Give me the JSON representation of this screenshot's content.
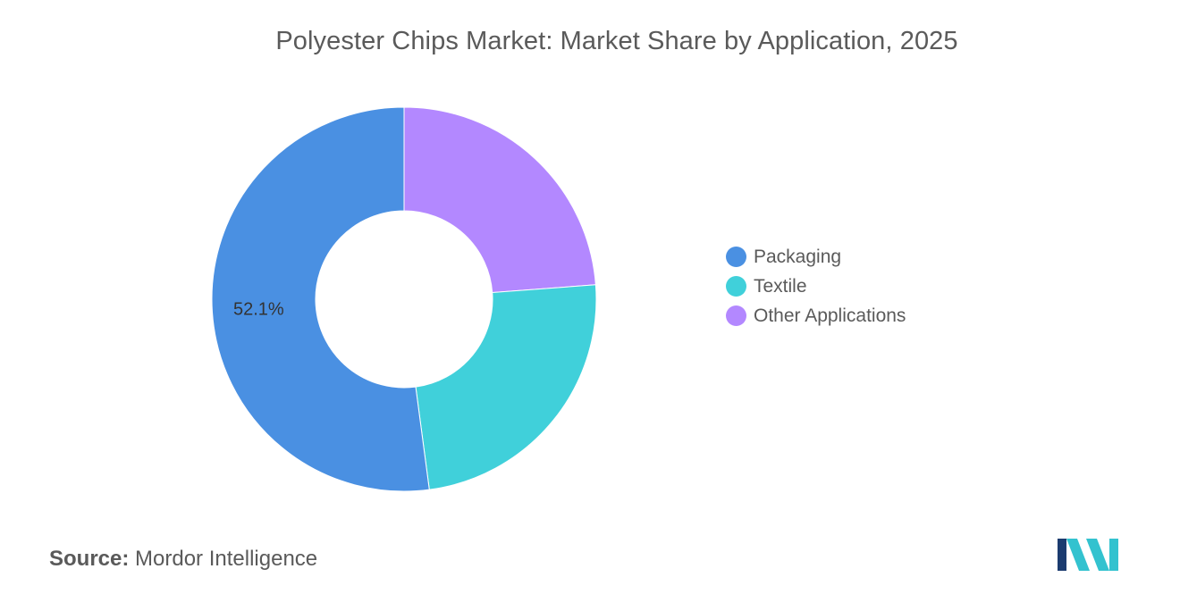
{
  "chart_data": {
    "type": "pie",
    "title": "Polyester Chips Market: Market Share by Application, 2025",
    "categories": [
      "Packaging",
      "Textile",
      "Other Applications"
    ],
    "values": [
      52.1,
      24.1,
      23.8
    ],
    "data_labels": [
      "52.1%",
      "",
      ""
    ],
    "colors": [
      "#4A90E2",
      "#40D0DA",
      "#B388FF"
    ],
    "donut": true,
    "legend_position": "right"
  },
  "source": {
    "label": "Source:",
    "value": "Mordor Intelligence"
  },
  "logo": {
    "icon": "mordor-intelligence-logo-icon",
    "colors": [
      "#1B3B6F",
      "#33C2CF"
    ]
  }
}
